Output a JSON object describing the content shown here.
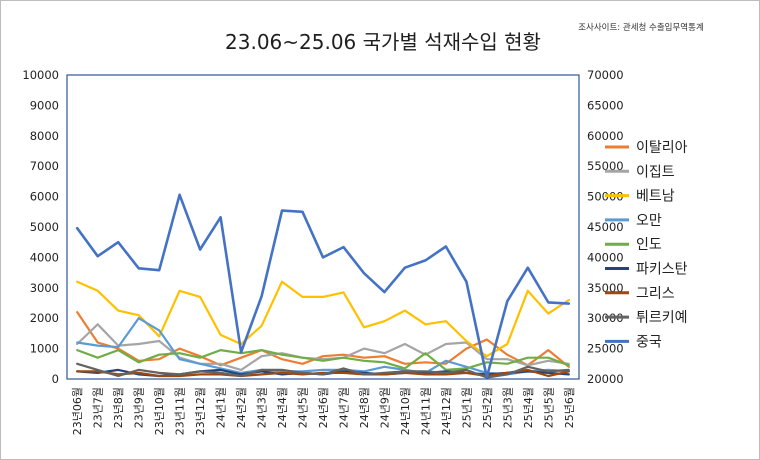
{
  "chart_data": {
    "type": "line",
    "title": "23.06~25.06 국가별 석재수입 현황",
    "source": "조사사이트: 관세청 수출입무역통계",
    "left_axis": {
      "min": 0,
      "max": 10000,
      "step": 1000
    },
    "right_axis": {
      "min": 20000,
      "max": 70000,
      "step": 5000
    },
    "grid": false,
    "legend_position": "right",
    "categories": [
      "23년06월",
      "23년7월",
      "23년8월",
      "23년9월",
      "23년10월",
      "23년11월",
      "23년12월",
      "24년1월",
      "24년2월",
      "24년3월",
      "24년4월",
      "24년5월",
      "24년6월",
      "24년7월",
      "24년8월",
      "24년9월",
      "24년10월",
      "24년11월",
      "24년12월",
      "25년1월",
      "25년2월",
      "25년3월",
      "25년4월",
      "25년5월",
      "25년6월"
    ],
    "series": [
      {
        "name": "이탈리아",
        "color": "#ED7D31",
        "axis": "left",
        "values": [
          2200,
          1200,
          1000,
          600,
          650,
          1000,
          750,
          450,
          700,
          950,
          650,
          500,
          750,
          800,
          700,
          750,
          500,
          550,
          500,
          1000,
          1300,
          800,
          450,
          950,
          400
        ]
      },
      {
        "name": "이집트",
        "color": "#A5A5A5",
        "axis": "left",
        "values": [
          1150,
          1800,
          1100,
          1150,
          1250,
          700,
          500,
          500,
          300,
          750,
          850,
          700,
          650,
          700,
          1000,
          850,
          1150,
          800,
          1150,
          1200,
          650,
          650,
          450,
          600,
          500
        ]
      },
      {
        "name": "베트남",
        "color": "#FFC000",
        "axis": "left",
        "values": [
          3200,
          2900,
          2250,
          2100,
          1400,
          2900,
          2700,
          1450,
          1150,
          1750,
          3200,
          2700,
          2700,
          2850,
          1700,
          1900,
          2250,
          1800,
          1900,
          1250,
          750,
          1150,
          2900,
          2150,
          2600
        ]
      },
      {
        "name": "오만",
        "color": "#5B9BD5",
        "axis": "left",
        "values": [
          1200,
          1100,
          1050,
          2000,
          1600,
          650,
          500,
          350,
          200,
          300,
          250,
          250,
          300,
          300,
          250,
          400,
          300,
          200,
          600,
          400,
          200,
          150,
          250,
          300,
          250
        ]
      },
      {
        "name": "인도",
        "color": "#70AD47",
        "axis": "left",
        "values": [
          950,
          700,
          950,
          550,
          800,
          850,
          700,
          950,
          850,
          950,
          800,
          700,
          600,
          700,
          600,
          550,
          350,
          850,
          300,
          350,
          550,
          500,
          700,
          700,
          450
        ]
      },
      {
        "name": "파키스탄",
        "color": "#264478",
        "axis": "left",
        "values": [
          250,
          200,
          300,
          150,
          100,
          150,
          250,
          300,
          150,
          250,
          150,
          200,
          150,
          250,
          200,
          150,
          200,
          200,
          250,
          200,
          150,
          200,
          250,
          200,
          150
        ]
      },
      {
        "name": "그리스",
        "color": "#9E480E",
        "axis": "left",
        "values": [
          250,
          250,
          150,
          200,
          100,
          100,
          150,
          150,
          100,
          150,
          200,
          150,
          200,
          200,
          150,
          150,
          200,
          150,
          150,
          200,
          100,
          200,
          300,
          100,
          250
        ]
      },
      {
        "name": "튀르키예",
        "color": "#636363",
        "axis": "left",
        "values": [
          500,
          300,
          100,
          300,
          200,
          150,
          250,
          200,
          100,
          300,
          300,
          200,
          150,
          350,
          150,
          200,
          250,
          250,
          200,
          300,
          50,
          150,
          400,
          250,
          300
        ]
      },
      {
        "name": "중국",
        "color": "#4472C4",
        "axis": "right",
        "values": [
          44800,
          40200,
          42500,
          38200,
          37900,
          50300,
          41300,
          46600,
          24400,
          33600,
          47700,
          47500,
          40000,
          41700,
          37400,
          34300,
          38300,
          39500,
          41800,
          36000,
          20300,
          32800,
          38300,
          32600,
          32400
        ]
      }
    ]
  }
}
